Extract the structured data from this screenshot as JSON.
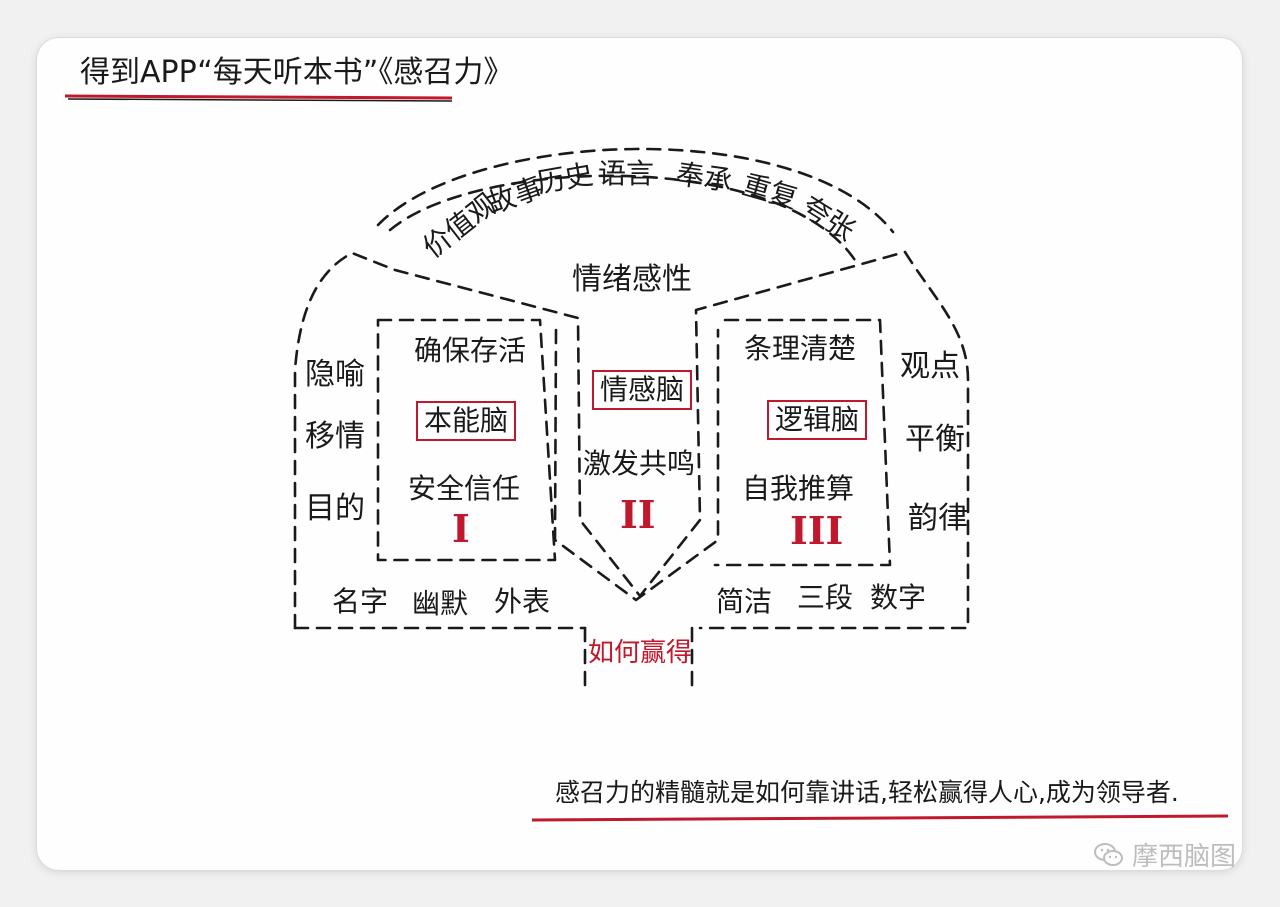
{
  "title": "得到APP“每天听本书”《感召力》",
  "arc_items": [
    "价值观",
    "故事",
    "历史",
    "语言",
    "奉承",
    "重复",
    "夸张"
  ],
  "top_center": "情绪感性",
  "left_column": [
    "隐喻",
    "移情",
    "目的"
  ],
  "right_column": [
    "观点",
    "平衡",
    "韵律"
  ],
  "left_brain": {
    "top": "确保存活",
    "name": "本能脑",
    "bottom": "安全信任",
    "numeral": "I"
  },
  "middle_brain": {
    "name": "情感脑",
    "bottom": "激发共鸣",
    "numeral": "II"
  },
  "right_brain": {
    "top": "条理清楚",
    "name": "逻辑脑",
    "bottom": "自我推算",
    "numeral": "III"
  },
  "bottom_left": [
    "名字",
    "幽默",
    "外表"
  ],
  "bottom_right": [
    "简洁",
    "三段",
    "数字"
  ],
  "stem_label": "如何赢得",
  "summary": "感召力的精髓就是如何靠讲话,轻松赢得人心,成为领导者.",
  "watermark": "摩西脑图",
  "colors": {
    "accent_red": "#c0182c",
    "ink": "#1a1a1a",
    "watermark": "#bdbdbd"
  }
}
